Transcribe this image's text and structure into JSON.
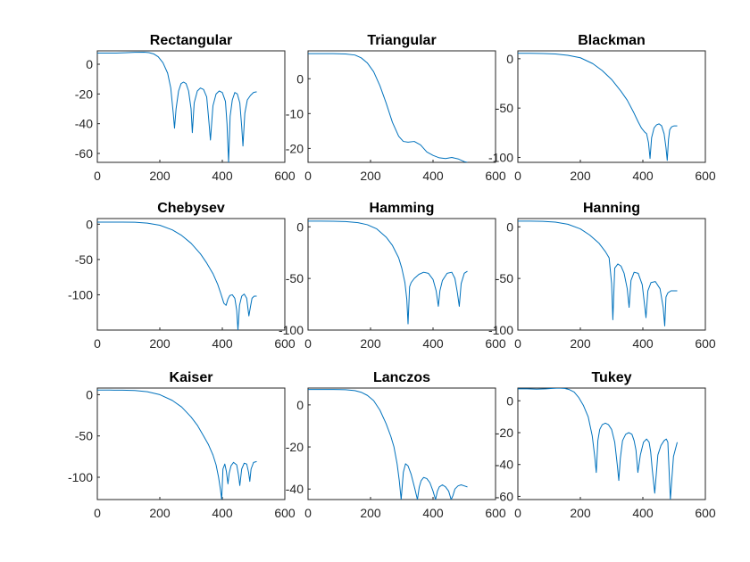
{
  "figure": {
    "background": "#ffffff",
    "line_color": "#0072bd",
    "axis_color": "#262626"
  },
  "chart_data": [
    {
      "type": "line",
      "title": "Rectangular",
      "xlim": [
        0,
        600
      ],
      "ylim": [
        -66,
        9
      ],
      "xticks": [
        "0",
        "200",
        "400",
        "600"
      ],
      "yticks": [
        "0",
        "-20",
        "-40",
        "-60"
      ],
      "series": [
        {
          "x": [
            0,
            30,
            60,
            90,
            120,
            150,
            165,
            180,
            195,
            210,
            225,
            235,
            243,
            247,
            252,
            260,
            268,
            276,
            284,
            292,
            300,
            304,
            310,
            320,
            330,
            340,
            350,
            356,
            362,
            370,
            380,
            390,
            400,
            410,
            415,
            420,
            425,
            432,
            440,
            448,
            456,
            462,
            466,
            472,
            480,
            490,
            500,
            510
          ],
          "y": [
            7.5,
            7.5,
            7.5,
            7.7,
            8.0,
            8.1,
            7.8,
            7,
            5,
            1,
            -6,
            -16,
            -33,
            -43,
            -30,
            -18,
            -13,
            -12,
            -13,
            -18,
            -30,
            -46,
            -26,
            -18,
            -16,
            -17,
            -22,
            -36,
            -51,
            -28,
            -20,
            -18,
            -19,
            -25,
            -40,
            -66,
            -35,
            -24,
            -19,
            -20,
            -26,
            -42,
            -55,
            -33,
            -24,
            -21,
            -19,
            -18.5
          ]
        }
      ]
    },
    {
      "type": "line",
      "title": "Triangular",
      "xlim": [
        0,
        600
      ],
      "ylim": [
        -24,
        8
      ],
      "xticks": [
        "0",
        "200",
        "400",
        "600"
      ],
      "yticks": [
        "0",
        "-10",
        "-20"
      ],
      "series": [
        {
          "x": [
            0,
            40,
            80,
            120,
            150,
            170,
            190,
            210,
            230,
            250,
            270,
            290,
            305,
            320,
            340,
            360,
            380,
            400,
            420,
            440,
            460,
            480,
            500,
            510
          ],
          "y": [
            7.2,
            7.2,
            7.2,
            7.1,
            6.8,
            6,
            4.5,
            2,
            -2,
            -7,
            -12.5,
            -16.5,
            -18,
            -18.2,
            -18,
            -19,
            -21,
            -22,
            -22.7,
            -22.9,
            -22.6,
            -23,
            -23.8,
            -24
          ]
        }
      ]
    },
    {
      "type": "line",
      "title": "Blackman",
      "xlim": [
        0,
        600
      ],
      "ylim": [
        -105,
        8
      ],
      "xticks": [
        "0",
        "200",
        "400",
        "600"
      ],
      "yticks": [
        "0",
        "-50",
        "-100"
      ],
      "series": [
        {
          "x": [
            0,
            40,
            80,
            120,
            160,
            200,
            240,
            270,
            300,
            330,
            350,
            370,
            385,
            395,
            405,
            412,
            418,
            423,
            428,
            436,
            444,
            452,
            460,
            468,
            474,
            478,
            482,
            486,
            492,
            500,
            510
          ],
          "y": [
            5.5,
            5.5,
            5.3,
            4.8,
            3.5,
            1,
            -5,
            -12,
            -21,
            -33,
            -42,
            -54,
            -64,
            -70,
            -74,
            -76,
            -85,
            -101,
            -80,
            -70,
            -67,
            -66,
            -68,
            -76,
            -90,
            -103,
            -82,
            -72,
            -69,
            -68,
            -68
          ]
        }
      ]
    },
    {
      "type": "line",
      "title": "Chebysev",
      "xlim": [
        0,
        600
      ],
      "ylim": [
        -150,
        8
      ],
      "xticks": [
        "0",
        "200",
        "400",
        "600"
      ],
      "yticks": [
        "0",
        "-50",
        "-100"
      ],
      "series": [
        {
          "x": [
            0,
            40,
            80,
            120,
            160,
            200,
            240,
            270,
            300,
            330,
            350,
            370,
            385,
            395,
            405,
            412,
            418,
            424,
            432,
            440,
            446,
            450,
            455,
            462,
            470,
            478,
            485,
            490,
            495,
            502,
            510
          ],
          "y": [
            3,
            3,
            3,
            2.8,
            1.5,
            -1.5,
            -8,
            -16,
            -27,
            -42,
            -55,
            -70,
            -85,
            -98,
            -112,
            -115,
            -106,
            -101,
            -100,
            -105,
            -122,
            -150,
            -115,
            -102,
            -99,
            -105,
            -130,
            -117,
            -105,
            -102,
            -102
          ]
        }
      ]
    },
    {
      "type": "line",
      "title": "Hamming",
      "xlim": [
        0,
        600
      ],
      "ylim": [
        -100,
        8
      ],
      "xticks": [
        "0",
        "200",
        "400",
        "600"
      ],
      "yticks": [
        "0",
        "-50",
        "-100"
      ],
      "series": [
        {
          "x": [
            0,
            40,
            80,
            120,
            160,
            190,
            220,
            250,
            270,
            290,
            300,
            310,
            316,
            320,
            325,
            330,
            340,
            355,
            370,
            385,
            400,
            410,
            417,
            422,
            430,
            445,
            460,
            470,
            478,
            484,
            490,
            500,
            510
          ],
          "y": [
            5.5,
            5.5,
            5.4,
            5.1,
            4,
            2,
            -2,
            -10,
            -18,
            -30,
            -40,
            -54,
            -70,
            -94,
            -58,
            -54,
            -50,
            -46,
            -44,
            -45,
            -51,
            -62,
            -77,
            -62,
            -52,
            -45,
            -44,
            -50,
            -64,
            -77,
            -55,
            -45,
            -43
          ]
        }
      ]
    },
    {
      "type": "line",
      "title": "Hanning",
      "xlim": [
        0,
        600
      ],
      "ylim": [
        -100,
        8
      ],
      "xticks": [
        "0",
        "200",
        "400",
        "600"
      ],
      "yticks": [
        "0",
        "-50",
        "-100"
      ],
      "series": [
        {
          "x": [
            0,
            40,
            80,
            120,
            160,
            200,
            230,
            260,
            280,
            292,
            300,
            304,
            310,
            320,
            330,
            340,
            350,
            356,
            362,
            372,
            385,
            398,
            406,
            410,
            416,
            426,
            440,
            455,
            465,
            470,
            474,
            480,
            490,
            500,
            510
          ],
          "y": [
            5.5,
            5.5,
            5.3,
            4.5,
            2.5,
            -2,
            -8,
            -16,
            -24,
            -30,
            -55,
            -90,
            -40,
            -36,
            -38,
            -45,
            -60,
            -78,
            -52,
            -44,
            -45,
            -56,
            -77,
            -88,
            -62,
            -54,
            -53,
            -60,
            -78,
            -96,
            -68,
            -64,
            -62,
            -62,
            -62
          ]
        }
      ]
    },
    {
      "type": "line",
      "title": "Kaiser",
      "xlim": [
        0,
        600
      ],
      "ylim": [
        -127,
        8
      ],
      "xticks": [
        "0",
        "200",
        "400",
        "600"
      ],
      "yticks": [
        "0",
        "-50",
        "-100"
      ],
      "series": [
        {
          "x": [
            0,
            40,
            80,
            120,
            160,
            200,
            240,
            270,
            300,
            320,
            340,
            355,
            370,
            380,
            388,
            394,
            398,
            402,
            408,
            413,
            418,
            422,
            428,
            436,
            446,
            452,
            456,
            462,
            470,
            478,
            484,
            488,
            492,
            500,
            510
          ],
          "y": [
            5.5,
            5.5,
            5.4,
            5,
            3.5,
            0,
            -7,
            -15,
            -27,
            -37,
            -50,
            -60,
            -73,
            -85,
            -100,
            -115,
            -127,
            -90,
            -84,
            -93,
            -108,
            -95,
            -86,
            -82,
            -85,
            -98,
            -110,
            -90,
            -83,
            -84,
            -94,
            -105,
            -90,
            -82,
            -81
          ]
        }
      ]
    },
    {
      "type": "line",
      "title": "Lanczos",
      "xlim": [
        0,
        600
      ],
      "ylim": [
        -45,
        8
      ],
      "xticks": [
        "0",
        "200",
        "400",
        "600"
      ],
      "yticks": [
        "0",
        "-20",
        "-40"
      ],
      "series": [
        {
          "x": [
            0,
            40,
            80,
            120,
            150,
            170,
            190,
            210,
            230,
            250,
            265,
            275,
            285,
            292,
            298,
            305,
            312,
            320,
            330,
            342,
            350,
            356,
            362,
            370,
            380,
            390,
            400,
            408,
            414,
            420,
            430,
            440,
            450,
            458,
            464,
            470,
            480,
            490,
            500,
            510
          ],
          "y": [
            7.3,
            7.3,
            7.3,
            7.2,
            6.8,
            6,
            4.5,
            2,
            -2.5,
            -9,
            -15,
            -20,
            -28,
            -36,
            -45,
            -32,
            -28,
            -29,
            -33,
            -40,
            -45,
            -39,
            -36,
            -34.5,
            -35,
            -37,
            -41,
            -45,
            -41,
            -39,
            -38,
            -39,
            -41,
            -45,
            -43,
            -40,
            -38.5,
            -38,
            -38.5,
            -39
          ]
        }
      ]
    },
    {
      "type": "line",
      "title": "Tukey",
      "xlim": [
        0,
        600
      ],
      "ylim": [
        -62,
        8
      ],
      "xticks": [
        "0",
        "200",
        "400",
        "600"
      ],
      "yticks": [
        "0",
        "-20",
        "-40",
        "-60"
      ],
      "series": [
        {
          "x": [
            0,
            30,
            60,
            90,
            110,
            130,
            150,
            165,
            180,
            195,
            210,
            225,
            238,
            246,
            251,
            256,
            262,
            270,
            280,
            290,
            300,
            310,
            318,
            323,
            328,
            335,
            345,
            355,
            365,
            372,
            378,
            384,
            392,
            402,
            412,
            420,
            425,
            430,
            438,
            448,
            458,
            468,
            475,
            480,
            488,
            498,
            510
          ],
          "y": [
            7.5,
            7.5,
            7.3,
            7.5,
            7.8,
            8,
            7.8,
            7,
            5.5,
            2,
            -3,
            -10,
            -22,
            -35,
            -45,
            -25,
            -18,
            -15,
            -14,
            -15,
            -18,
            -26,
            -40,
            -50,
            -36,
            -25,
            -21,
            -20,
            -21,
            -25,
            -31,
            -45,
            -34,
            -26,
            -24,
            -26,
            -32,
            -43,
            -58,
            -34,
            -28,
            -25,
            -24,
            -26,
            -62,
            -35,
            -26
          ]
        }
      ]
    }
  ]
}
